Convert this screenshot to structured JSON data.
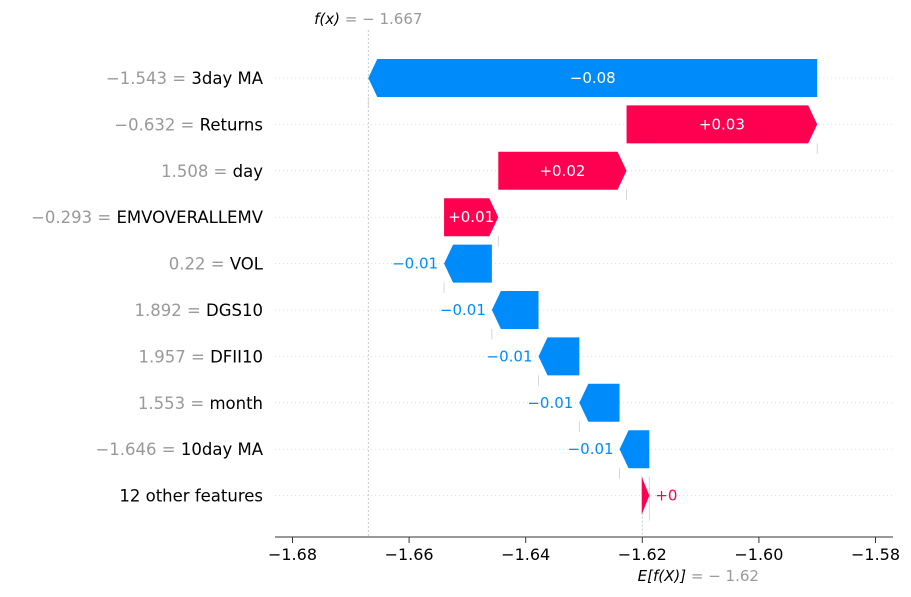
{
  "chart_data": {
    "type": "waterfall",
    "fx_prefix": "f(x)",
    "fx_value": "= − 1.667",
    "ex_prefix": "E[f(X)]",
    "ex_value": "= − 1.62",
    "fx": -1.667,
    "base_value": -1.62,
    "xlim": [
      -1.683,
      -1.577
    ],
    "x_ticks": [
      {
        "value": -1.68,
        "label": "−1.68"
      },
      {
        "value": -1.66,
        "label": "−1.66"
      },
      {
        "value": -1.64,
        "label": "−1.64"
      },
      {
        "value": -1.62,
        "label": "−1.62"
      },
      {
        "value": -1.6,
        "label": "−1.60"
      },
      {
        "value": -1.58,
        "label": "−1.58"
      }
    ],
    "features": [
      {
        "value_text": "−1.543 =",
        "name": "3day MA",
        "start": -1.59,
        "end": -1.667,
        "label": "−0.08",
        "label_inside": true
      },
      {
        "value_text": "−0.632 =",
        "name": "Returns",
        "start": -1.6227,
        "end": -1.59,
        "label": "+0.03",
        "label_inside": true
      },
      {
        "value_text": "1.508 =",
        "name": "day",
        "start": -1.6447,
        "end": -1.6227,
        "label": "+0.02",
        "label_inside": true
      },
      {
        "value_text": "−0.293 =",
        "name": "EMVOVERALLEMV",
        "start": -1.654,
        "end": -1.6447,
        "label": "+0.01",
        "label_inside": true
      },
      {
        "value_text": "0.22 =",
        "name": "VOL",
        "start": -1.6458,
        "end": -1.654,
        "label": "−0.01",
        "label_inside": false
      },
      {
        "value_text": "1.892 =",
        "name": "DGS10",
        "start": -1.6378,
        "end": -1.6458,
        "label": "−0.01",
        "label_inside": false
      },
      {
        "value_text": "1.957 =",
        "name": "DFII10",
        "start": -1.6308,
        "end": -1.6378,
        "label": "−0.01",
        "label_inside": false
      },
      {
        "value_text": "1.553 =",
        "name": "month",
        "start": -1.6239,
        "end": -1.6308,
        "label": "−0.01",
        "label_inside": false
      },
      {
        "value_text": "−1.646 =",
        "name": "10day MA",
        "start": -1.6188,
        "end": -1.6239,
        "label": "−0.01",
        "label_inside": false
      },
      {
        "value_text": "",
        "name": "12 other features",
        "start": -1.6201,
        "end": -1.6188,
        "label": "+0",
        "label_inside": false
      }
    ],
    "colors": {
      "positive": "#ff0051",
      "negative": "#008bfb",
      "value_text": "#999999",
      "label_text": "#000000",
      "axis": "#333333"
    }
  }
}
